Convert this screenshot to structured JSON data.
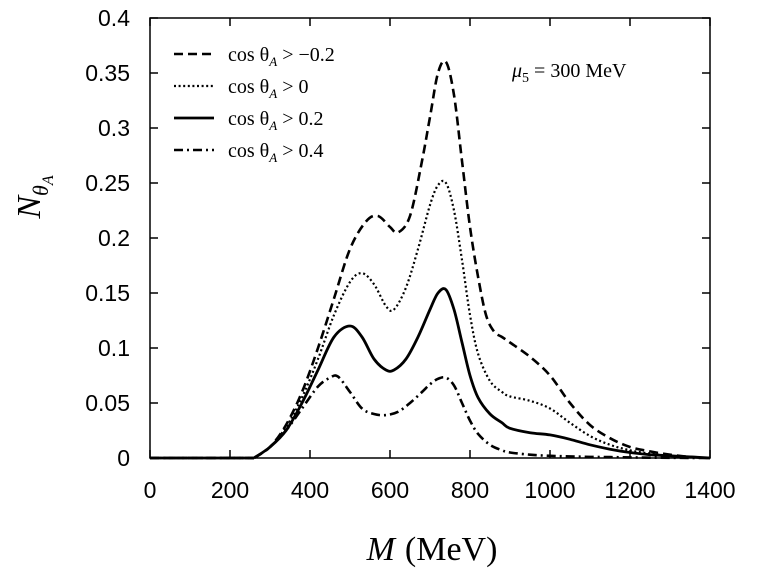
{
  "chart_data": {
    "type": "line",
    "title": "",
    "xlabel": "M (MeV)",
    "xlabel_var": "M",
    "xlabel_unit": "(MeV)",
    "ylabel": "N_{θ_A}",
    "xlim": [
      0,
      1400
    ],
    "ylim": [
      0,
      0.4
    ],
    "xticks": [
      0,
      200,
      400,
      600,
      800,
      1000,
      1200,
      1400
    ],
    "xtick_labels": [
      "0",
      "200",
      "400",
      "600",
      "800",
      "1000",
      "1200",
      "1400"
    ],
    "yticks": [
      0,
      0.05,
      0.1,
      0.15,
      0.2,
      0.25,
      0.3,
      0.35,
      0.4
    ],
    "ytick_labels": [
      "0",
      "0.05",
      "0.1",
      "0.15",
      "0.2",
      "0.25",
      "0.3",
      "0.35",
      "0.4"
    ],
    "grid": false,
    "legend_position": "top-left",
    "annotation": {
      "text": "μ5 = 300 MeV",
      "symbol": "μ",
      "subscript": "5",
      "rest": " = 300 MeV"
    },
    "series": [
      {
        "name": "cos θA > −0.2",
        "legend": {
          "prefix": "cos θ",
          "sub": "A",
          "suffix": " > −0.2"
        },
        "style": "dashed",
        "x": [
          260,
          300,
          340,
          380,
          420,
          460,
          500,
          540,
          570,
          600,
          620,
          650,
          680,
          700,
          720,
          740,
          760,
          780,
          800,
          820,
          840,
          860,
          880,
          900,
          950,
          1000,
          1050,
          1100,
          1150,
          1200,
          1250,
          1300,
          1350,
          1400
        ],
        "y": [
          0.0,
          0.01,
          0.03,
          0.06,
          0.1,
          0.145,
          0.19,
          0.215,
          0.22,
          0.21,
          0.205,
          0.22,
          0.27,
          0.31,
          0.35,
          0.36,
          0.33,
          0.27,
          0.21,
          0.165,
          0.13,
          0.115,
          0.11,
          0.105,
          0.092,
          0.075,
          0.05,
          0.03,
          0.018,
          0.01,
          0.006,
          0.003,
          0.001,
          0.0
        ]
      },
      {
        "name": "cos θA > 0",
        "legend": {
          "prefix": "cos θ",
          "sub": "A",
          "suffix": " > 0"
        },
        "style": "dotted",
        "x": [
          260,
          300,
          340,
          380,
          420,
          460,
          500,
          530,
          560,
          590,
          610,
          640,
          670,
          700,
          720,
          740,
          760,
          780,
          800,
          820,
          850,
          880,
          900,
          950,
          1000,
          1050,
          1100,
          1150,
          1200,
          1250,
          1300,
          1350,
          1400
        ],
        "y": [
          0.0,
          0.01,
          0.028,
          0.055,
          0.09,
          0.13,
          0.16,
          0.168,
          0.158,
          0.138,
          0.135,
          0.155,
          0.19,
          0.23,
          0.248,
          0.25,
          0.225,
          0.18,
          0.13,
          0.095,
          0.07,
          0.06,
          0.056,
          0.052,
          0.045,
          0.032,
          0.02,
          0.012,
          0.007,
          0.004,
          0.002,
          0.001,
          0.0
        ]
      },
      {
        "name": "cos θA > 0.2",
        "legend": {
          "prefix": "cos θ",
          "sub": "A",
          "suffix": " > 0.2"
        },
        "style": "solid",
        "x": [
          260,
          300,
          340,
          380,
          420,
          460,
          500,
          530,
          560,
          590,
          610,
          640,
          670,
          700,
          720,
          740,
          760,
          780,
          800,
          820,
          850,
          880,
          900,
          950,
          1000,
          1050,
          1100,
          1150,
          1200,
          1250,
          1300,
          1350,
          1400
        ],
        "y": [
          0.0,
          0.01,
          0.025,
          0.05,
          0.08,
          0.11,
          0.12,
          0.11,
          0.09,
          0.08,
          0.08,
          0.09,
          0.11,
          0.135,
          0.15,
          0.153,
          0.135,
          0.105,
          0.075,
          0.055,
          0.04,
          0.032,
          0.027,
          0.023,
          0.021,
          0.017,
          0.012,
          0.008,
          0.005,
          0.003,
          0.002,
          0.001,
          0.0
        ]
      },
      {
        "name": "cos θA > 0.4",
        "legend": {
          "prefix": "cos θ",
          "sub": "A",
          "suffix": " > 0.4"
        },
        "style": "dashdot",
        "x": [
          260,
          300,
          340,
          380,
          420,
          450,
          470,
          500,
          530,
          560,
          590,
          620,
          650,
          680,
          700,
          720,
          740,
          760,
          780,
          800,
          820,
          850,
          880,
          900,
          950,
          1000,
          1050,
          1100,
          1150,
          1200,
          1250,
          1300,
          1350,
          1400
        ],
        "y": [
          0.0,
          0.01,
          0.025,
          0.045,
          0.065,
          0.073,
          0.074,
          0.06,
          0.045,
          0.04,
          0.039,
          0.042,
          0.05,
          0.06,
          0.067,
          0.072,
          0.073,
          0.066,
          0.05,
          0.034,
          0.022,
          0.012,
          0.007,
          0.005,
          0.003,
          0.002,
          0.0015,
          0.001,
          0.0008,
          0.0005,
          0.0003,
          0.0002,
          0.0001,
          0.0
        ]
      }
    ]
  }
}
